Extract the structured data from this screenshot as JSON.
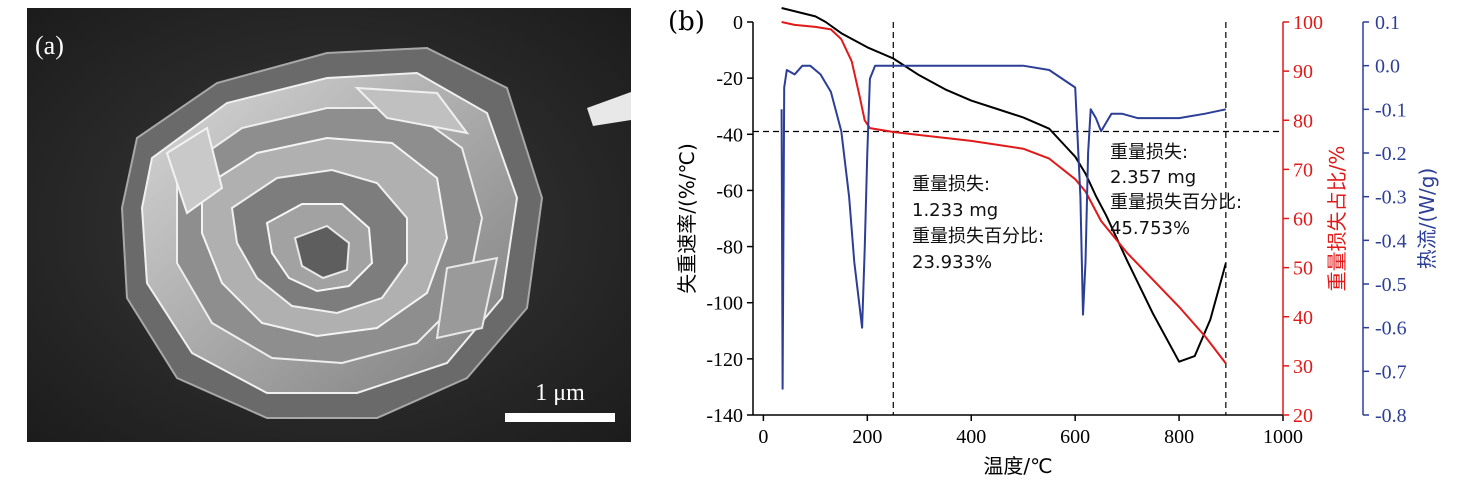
{
  "panel_a": {
    "label": "(a)",
    "scale_bar_label": "1 μm"
  },
  "panel_b": {
    "label": "(b)"
  },
  "colors": {
    "dtg": "#000000",
    "tg": "#e01919",
    "dsc": "#2c3e96",
    "axis": "#000000"
  },
  "annotations": {
    "first": {
      "line1": "重量损失:",
      "line2": "1.233 mg",
      "line3": "重量损失百分比:",
      "line4": "23.933%"
    },
    "second": {
      "line1": "重量损失:",
      "line2": "2.357 mg",
      "line3": "重量损失百分比:",
      "line4": "45.753%"
    }
  },
  "chart_data": {
    "type": "line",
    "xlabel": "温度/℃",
    "xlim": [
      -20,
      1000
    ],
    "xticks": [
      0,
      200,
      400,
      600,
      800,
      1000
    ],
    "y_left": {
      "label": "失重速率/(%/℃)",
      "lim": [
        -140,
        0
      ],
      "ticks": [
        0,
        -20,
        -40,
        -60,
        -80,
        -100,
        -120,
        -140
      ]
    },
    "y_right1": {
      "label": "重量损失占比/%",
      "lim": [
        20,
        100
      ],
      "ticks": [
        100,
        90,
        80,
        70,
        60,
        50,
        40,
        30,
        20
      ]
    },
    "y_right2": {
      "label": "热流/(W/g)",
      "lim": [
        -0.8,
        0.1
      ],
      "ticks": [
        0.1,
        0.0,
        -0.1,
        -0.2,
        -0.3,
        -0.4,
        -0.5,
        -0.6,
        -0.7,
        -0.8
      ]
    },
    "vlines_x": [
      250,
      890
    ],
    "hline_y_left": -39,
    "series": [
      {
        "axis": "left",
        "x": [
          35,
          100,
          120,
          150,
          200,
          250,
          300,
          350,
          400,
          450,
          500,
          550,
          580,
          600,
          620,
          640,
          660,
          700,
          750,
          800,
          830,
          860,
          890
        ],
        "values": [
          5,
          2,
          0,
          -4,
          -9,
          -13,
          -19,
          -24,
          -28,
          -31,
          -34,
          -38,
          -44,
          -48,
          -54,
          -62,
          -69,
          -85,
          -104,
          -121,
          -119,
          -106,
          -86
        ]
      },
      {
        "axis": "right1",
        "x": [
          35,
          60,
          100,
          130,
          150,
          170,
          185,
          195,
          205,
          250,
          300,
          400,
          500,
          550,
          600,
          620,
          650,
          700,
          750,
          800,
          850,
          890
        ],
        "values": [
          100,
          99.4,
          99,
          98.5,
          96.5,
          92,
          85,
          80,
          78.4,
          77.6,
          77,
          75.8,
          74.2,
          72.2,
          68,
          65.5,
          59.5,
          53,
          47.5,
          42,
          36,
          30.5
        ]
      },
      {
        "axis": "right2",
        "x": [
          35,
          37,
          40,
          45,
          60,
          75,
          90,
          110,
          130,
          150,
          165,
          175,
          185,
          190,
          195,
          200,
          205,
          215,
          250,
          300,
          400,
          500,
          550,
          600,
          610,
          615,
          620,
          625,
          630,
          640,
          650,
          660,
          670,
          690,
          720,
          760,
          800,
          850,
          890
        ],
        "values": [
          -0.1,
          -0.74,
          -0.05,
          -0.01,
          -0.02,
          0.0,
          0.0,
          -0.02,
          -0.06,
          -0.15,
          -0.3,
          -0.45,
          -0.55,
          -0.6,
          -0.42,
          -0.2,
          -0.03,
          0.0,
          0.0,
          0.0,
          0.0,
          0.0,
          -0.01,
          -0.05,
          -0.3,
          -0.57,
          -0.45,
          -0.2,
          -0.1,
          -0.12,
          -0.15,
          -0.13,
          -0.11,
          -0.11,
          -0.12,
          -0.12,
          -0.12,
          -0.11,
          -0.1
        ]
      }
    ]
  }
}
